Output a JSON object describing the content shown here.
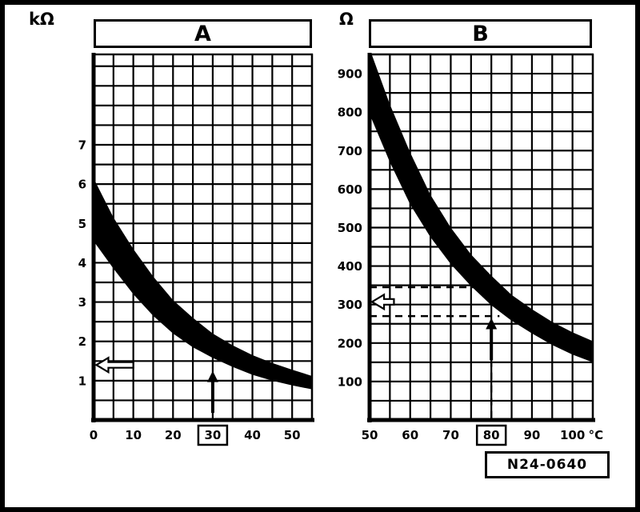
{
  "code_label": "N24-0640",
  "chart_data": [
    {
      "panel": "A",
      "type": "area",
      "title": "A",
      "y_unit": "kΩ",
      "x_range": [
        0,
        55
      ],
      "y_range": [
        0,
        9.3
      ],
      "grid_step": {
        "x": 5,
        "y": 0.5
      },
      "x_ticks": [
        0,
        10,
        20,
        30,
        40,
        50
      ],
      "y_ticks": [
        1,
        2,
        3,
        4,
        5,
        6,
        7
      ],
      "boxed_x_tick": 30,
      "band": {
        "x": [
          0,
          5,
          10,
          15,
          20,
          25,
          30,
          35,
          40,
          45,
          50,
          55
        ],
        "upper": [
          6.15,
          5.15,
          4.35,
          3.65,
          3.05,
          2.6,
          2.2,
          1.9,
          1.65,
          1.45,
          1.28,
          1.12
        ],
        "lower": [
          4.55,
          3.85,
          3.2,
          2.65,
          2.2,
          1.85,
          1.58,
          1.35,
          1.15,
          1.0,
          0.88,
          0.78
        ]
      },
      "annotations": [
        {
          "type": "arrow_up",
          "x": 30,
          "y_from": 0.18,
          "y_to": 1.25
        },
        {
          "type": "arrow_left",
          "y": 1.4,
          "x_from": 10,
          "x_to": 0.7
        }
      ]
    },
    {
      "panel": "B",
      "type": "area",
      "title": "B",
      "y_unit": "Ω",
      "x_unit_suffix": "°C",
      "x_range": [
        50,
        105
      ],
      "y_range": [
        0,
        950
      ],
      "grid_step": {
        "x": 5,
        "y": 50
      },
      "x_ticks": [
        50,
        60,
        70,
        80,
        90,
        100
      ],
      "y_ticks": [
        100,
        200,
        300,
        400,
        500,
        600,
        700,
        800,
        900
      ],
      "boxed_x_tick": 80,
      "band": {
        "x": [
          50,
          55,
          60,
          65,
          70,
          75,
          80,
          85,
          90,
          95,
          100,
          105
        ],
        "upper": [
          965,
          820,
          695,
          585,
          500,
          430,
          375,
          325,
          288,
          255,
          228,
          205
        ],
        "lower": [
          795,
          670,
          560,
          475,
          405,
          348,
          298,
          258,
          225,
          195,
          170,
          150
        ]
      },
      "annotations": [
        {
          "type": "dash_h",
          "y": 345,
          "x_from": 50,
          "x_to": 76
        },
        {
          "type": "dash_h",
          "y": 270,
          "x_from": 50,
          "x_to": 82
        },
        {
          "type": "arrow_left",
          "y": 307,
          "x_from": 56,
          "x_to": 50.6
        },
        {
          "type": "dash_v",
          "x": 80,
          "y_from": 5,
          "y_to": 150
        },
        {
          "type": "arrow_up",
          "x": 80,
          "y_from": 155,
          "y_to": 265
        }
      ]
    }
  ]
}
